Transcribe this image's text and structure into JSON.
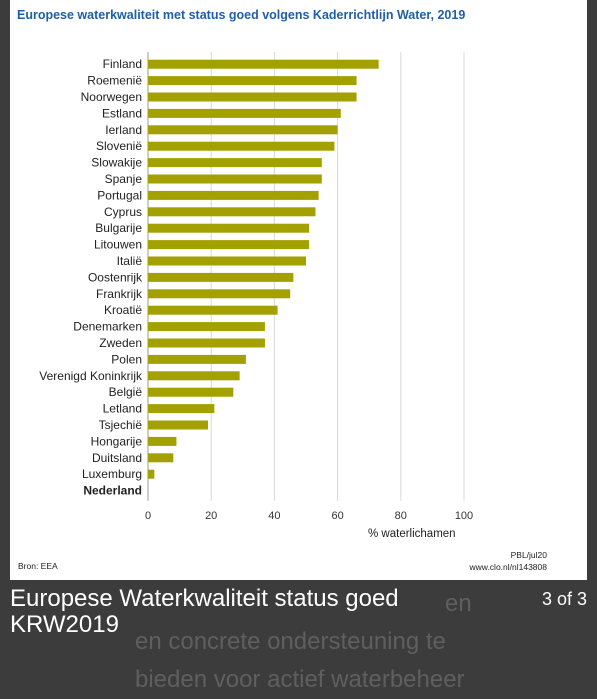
{
  "caption": {
    "title": "Europese Waterkwaliteit status goed KRW2019",
    "pager": "3 of 3"
  },
  "background_text": {
    "line1_start": "en",
    "line1_end": "en",
    "line2": "en concrete ondersteuning te",
    "line3": "bieden voor actief waterbeheer"
  },
  "colors": {
    "bar": "#a3a100",
    "title": "#1f5fa8",
    "grid": "#d8d8d8"
  },
  "chart_data": {
    "type": "bar",
    "orientation": "horizontal",
    "title": "Europese waterkwaliteit met status goed volgens Kaderrichtlijn Water, 2019",
    "xlabel": "% waterlichamen",
    "ylabel": "",
    "xlim": [
      0,
      100
    ],
    "xticks": [
      "0",
      "20",
      "40",
      "60",
      "80",
      "100"
    ],
    "grid": "vertical",
    "highlight_category": "Nederland",
    "categories": [
      "Finland",
      "Roemenië",
      "Noorwegen",
      "Estland",
      "Ierland",
      "Slovenië",
      "Slowakije",
      "Spanje",
      "Portugal",
      "Cyprus",
      "Bulgarije",
      "Litouwen",
      "Italië",
      "Oostenrijk",
      "Frankrijk",
      "Kroatië",
      "Denemarken",
      "Zweden",
      "Polen",
      "Verenigd Koninkrijk",
      "België",
      "Letland",
      "Tsjechië",
      "Hongarije",
      "Duitsland",
      "Luxemburg",
      "Nederland"
    ],
    "values": [
      73,
      66,
      66,
      61,
      60,
      59,
      55,
      55,
      54,
      53,
      51,
      51,
      50,
      46,
      45,
      41,
      37,
      37,
      31,
      29,
      27,
      21,
      19,
      9,
      8,
      2,
      0
    ],
    "source": "Bron: EEA",
    "credit_line1": "PBL/jul20",
    "credit_line2": "www.clo.nl/nl143808"
  }
}
